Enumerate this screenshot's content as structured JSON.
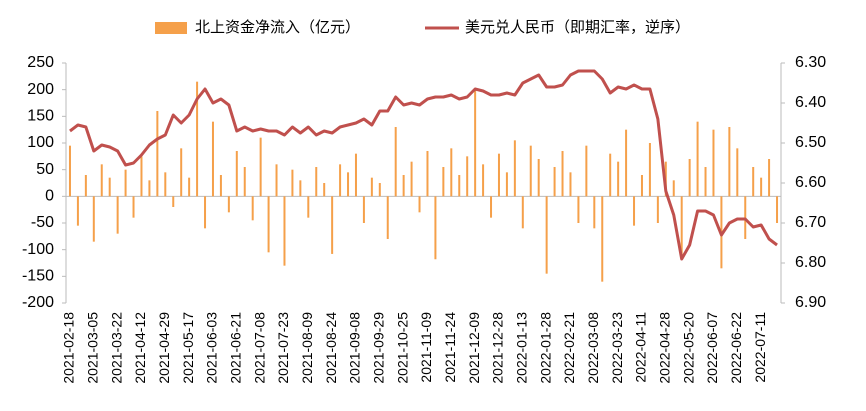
{
  "chart_data": {
    "type": "bar_line",
    "categories": [
      "2021-02-18",
      null,
      null,
      "2021-03-05",
      null,
      null,
      "2021-03-22",
      null,
      null,
      "2021-04-12",
      null,
      null,
      "2021-04-29",
      null,
      null,
      "2021-05-17",
      null,
      null,
      "2021-06-03",
      null,
      null,
      "2021-06-21",
      null,
      null,
      "2021-07-08",
      null,
      null,
      "2021-07-23",
      null,
      null,
      "2021-08-09",
      null,
      null,
      "2021-08-24",
      null,
      null,
      "2021-09-08",
      null,
      null,
      "2021-09-29",
      null,
      null,
      "2021-10-25",
      null,
      null,
      "2021-11-09",
      null,
      null,
      "2021-11-24",
      null,
      null,
      "2021-12-09",
      null,
      null,
      "2021-12-28",
      null,
      null,
      "2022-01-13",
      null,
      null,
      "2022-01-28",
      null,
      null,
      "2022-02-21",
      null,
      null,
      "2022-03-08",
      null,
      null,
      "2022-03-23",
      null,
      null,
      "2022-04-11",
      null,
      null,
      "2022-04-28",
      null,
      null,
      "2022-05-20",
      null,
      null,
      "2022-06-07",
      null,
      null,
      "2022-06-22",
      null,
      null,
      "2022-07-11",
      null,
      null
    ],
    "series": [
      {
        "name": "北上资金净流入（亿元）",
        "color": "#f5a04a",
        "kind": "bar",
        "values": [
          95,
          -55,
          40,
          -85,
          60,
          35,
          -70,
          50,
          -40,
          75,
          30,
          160,
          45,
          -20,
          90,
          35,
          215,
          -60,
          140,
          40,
          -30,
          85,
          55,
          -45,
          110,
          -105,
          60,
          -130,
          50,
          30,
          -40,
          55,
          25,
          -108,
          60,
          45,
          80,
          -50,
          35,
          25,
          -80,
          130,
          40,
          65,
          -30,
          85,
          -118,
          55,
          90,
          40,
          75,
          200,
          60,
          -40,
          80,
          45,
          105,
          -60,
          95,
          70,
          -145,
          55,
          85,
          45,
          -50,
          95,
          -60,
          -160,
          80,
          65,
          125,
          -55,
          40,
          100,
          -50,
          65,
          30,
          -115,
          70,
          140,
          55,
          125,
          -135,
          130,
          90,
          -80,
          55,
          35,
          70,
          -50
        ]
      },
      {
        "name": "美元兑人民币（即期汇率，逆序）",
        "color": "#c0504d",
        "kind": "line",
        "axis": "y2",
        "values": [
          6.47,
          6.455,
          6.46,
          6.52,
          6.505,
          6.51,
          6.52,
          6.555,
          6.55,
          6.53,
          6.505,
          6.49,
          6.48,
          6.43,
          6.45,
          6.43,
          6.39,
          6.365,
          6.4,
          6.39,
          6.405,
          6.47,
          6.46,
          6.47,
          6.465,
          6.47,
          6.47,
          6.48,
          6.46,
          6.475,
          6.46,
          6.48,
          6.47,
          6.475,
          6.46,
          6.455,
          6.45,
          6.44,
          6.455,
          6.42,
          6.42,
          6.385,
          6.405,
          6.4,
          6.405,
          6.39,
          6.385,
          6.385,
          6.38,
          6.39,
          6.385,
          6.365,
          6.37,
          6.38,
          6.38,
          6.375,
          6.38,
          6.35,
          6.34,
          6.33,
          6.36,
          6.36,
          6.355,
          6.33,
          6.32,
          6.32,
          6.32,
          6.34,
          6.375,
          6.36,
          6.365,
          6.355,
          6.365,
          6.365,
          6.44,
          6.62,
          6.68,
          6.79,
          6.755,
          6.67,
          6.67,
          6.68,
          6.73,
          6.7,
          6.69,
          6.69,
          6.71,
          6.705,
          6.74,
          6.755
        ]
      }
    ],
    "ylim": [
      -200,
      250
    ],
    "yticks": [
      -200,
      -150,
      -100,
      -50,
      0,
      50,
      100,
      150,
      200,
      250
    ],
    "y2lim": [
      6.3,
      6.9
    ],
    "y2_reversed": true,
    "y2ticks": [
      {
        "value": 6.3,
        "label": "6.30"
      },
      {
        "value": 6.4,
        "label": "6.40"
      },
      {
        "value": 6.5,
        "label": "6.50"
      },
      {
        "value": 6.6,
        "label": "6.60"
      },
      {
        "value": 6.7,
        "label": "6.70"
      },
      {
        "value": 6.8,
        "label": "6.80"
      },
      {
        "value": 6.9,
        "label": "6.90"
      }
    ],
    "legend": "top"
  }
}
